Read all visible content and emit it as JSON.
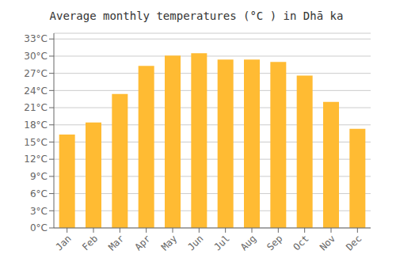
{
  "chart_data": {
    "type": "bar",
    "title": "Average monthly temperatures (°C ) in Dhā ka",
    "categories": [
      "Jan",
      "Feb",
      "Mar",
      "Apr",
      "May",
      "Jun",
      "Jul",
      "Aug",
      "Sep",
      "Oct",
      "Nov",
      "Dec"
    ],
    "values": [
      16.3,
      18.4,
      23.4,
      28.3,
      30.1,
      30.5,
      29.4,
      29.4,
      29.0,
      26.6,
      22.0,
      17.3
    ],
    "color": "#FFBB33",
    "ylim": [
      0,
      34
    ],
    "yticks": [
      {
        "value": 0,
        "label": "0°C"
      },
      {
        "value": 3,
        "label": "3°C"
      },
      {
        "value": 6,
        "label": "6°C"
      },
      {
        "value": 9,
        "label": "9°C"
      },
      {
        "value": 12,
        "label": "12°C"
      },
      {
        "value": 15,
        "label": "15°C"
      },
      {
        "value": 18,
        "label": "18°C"
      },
      {
        "value": 21,
        "label": "21°C"
      },
      {
        "value": 24,
        "label": "24°C"
      },
      {
        "value": 27,
        "label": "27°C"
      },
      {
        "value": 30,
        "label": "30°C"
      },
      {
        "value": 33,
        "label": "33°C"
      }
    ],
    "grid": true
  }
}
